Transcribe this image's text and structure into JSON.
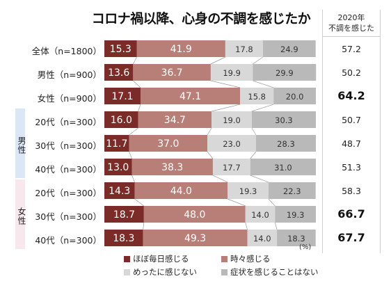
{
  "chart_data": {
    "type": "bar",
    "title": "コロナ禍以降、心身の不調を感じたか",
    "unit": "(%)",
    "side_header": [
      "2020年",
      "不調を感じた"
    ],
    "groups": [
      {
        "label": "男性",
        "color": "#dbe6f6"
      },
      {
        "label": "女性",
        "color": "#f8e7ec"
      }
    ],
    "categories": [
      "全体（n=1800）",
      "男性（n=900）",
      "女性（n=900）",
      "20代（n=300）",
      "30代（n=300）",
      "40代（n=300）",
      "20代（n=300）",
      "30代（n=300）",
      "40代（n=300）"
    ],
    "series": [
      {
        "name": "ほぼ毎日感じる",
        "color": "#7b2c28",
        "values": [
          15.3,
          13.6,
          17.1,
          16.0,
          11.7,
          13.0,
          14.3,
          18.7,
          18.3
        ]
      },
      {
        "name": "時々感じる",
        "color": "#b87e78",
        "values": [
          41.9,
          36.7,
          47.1,
          34.7,
          37.0,
          38.3,
          44.0,
          48.0,
          49.3
        ]
      },
      {
        "name": "めったに感じない",
        "color": "#d8d8d8",
        "values": [
          17.8,
          19.9,
          15.8,
          19.0,
          23.0,
          17.7,
          19.3,
          14.0,
          14.0
        ]
      },
      {
        "name": "症状を感じることはない",
        "color": "#b9b9b9",
        "values": [
          24.9,
          29.9,
          20.0,
          30.3,
          28.3,
          31.0,
          22.3,
          19.3,
          18.3
        ]
      }
    ],
    "side_values": [
      "57.2",
      "50.2",
      "64.2",
      "50.7",
      "48.7",
      "51.3",
      "58.3",
      "66.7",
      "67.7"
    ],
    "side_bold": [
      false,
      false,
      true,
      false,
      false,
      false,
      false,
      true,
      true
    ],
    "xlim": [
      0,
      100
    ]
  }
}
